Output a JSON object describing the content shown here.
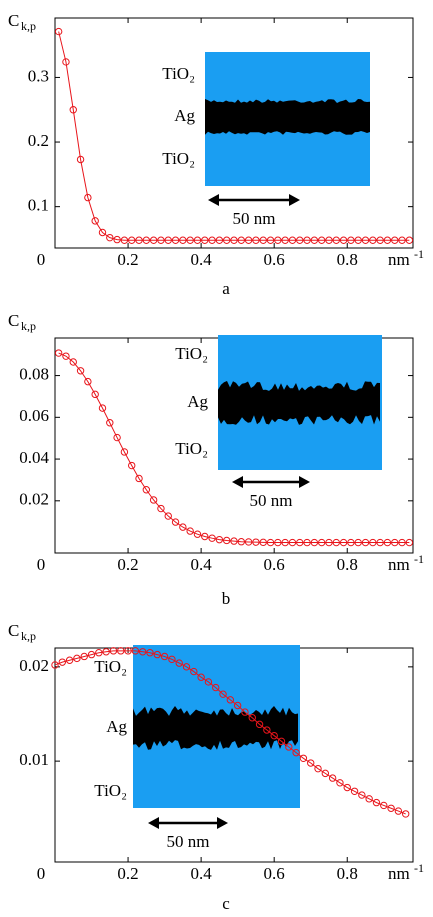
{
  "chart_data": [
    {
      "type": "line",
      "panel_label": "a",
      "y_label": "C",
      "y_label_subscript": "k,p",
      "x_label": "nm",
      "x_label_superscript": "-1",
      "x": [
        0.01,
        0.03,
        0.05,
        0.07,
        0.09,
        0.11,
        0.13,
        0.15,
        0.17,
        0.19,
        0.21,
        0.23,
        0.25,
        0.27,
        0.29,
        0.31,
        0.33,
        0.35,
        0.37,
        0.39,
        0.41,
        0.43,
        0.45,
        0.47,
        0.49,
        0.51,
        0.53,
        0.55,
        0.57,
        0.59,
        0.61,
        0.63,
        0.65,
        0.67,
        0.69,
        0.71,
        0.73,
        0.75,
        0.77,
        0.79,
        0.81,
        0.83,
        0.85,
        0.87,
        0.89,
        0.91,
        0.93,
        0.95,
        0.97
      ],
      "values": [
        0.371,
        0.324,
        0.25,
        0.173,
        0.114,
        0.078,
        0.06,
        0.052,
        0.049,
        0.048,
        0.048,
        0.048,
        0.048,
        0.048,
        0.048,
        0.048,
        0.048,
        0.048,
        0.048,
        0.048,
        0.048,
        0.048,
        0.048,
        0.048,
        0.048,
        0.048,
        0.048,
        0.048,
        0.048,
        0.048,
        0.048,
        0.048,
        0.048,
        0.048,
        0.048,
        0.048,
        0.048,
        0.048,
        0.048,
        0.048,
        0.048,
        0.048,
        0.048,
        0.048,
        0.048,
        0.048,
        0.048,
        0.048,
        0.048
      ],
      "color": "#e8151b",
      "marker": "circle",
      "xlim": [
        0,
        0.98
      ],
      "ylim": [
        0.036,
        0.392
      ],
      "xticks": [
        0,
        0.2,
        0.4,
        0.6,
        0.8
      ],
      "yticks": [
        0.1,
        0.2,
        0.3
      ],
      "inset": {
        "labels": [
          "TiO₂",
          "Ag",
          "TiO₂"
        ],
        "scale_bar": "50 nm",
        "color": "#1a9ef2"
      }
    },
    {
      "type": "line",
      "panel_label": "b",
      "y_label": "C",
      "y_label_subscript": "k,p",
      "x_label": "nm",
      "x_label_superscript": "-1",
      "x": [
        0.01,
        0.03,
        0.05,
        0.07,
        0.09,
        0.11,
        0.13,
        0.15,
        0.17,
        0.19,
        0.21,
        0.23,
        0.25,
        0.27,
        0.29,
        0.31,
        0.33,
        0.35,
        0.37,
        0.39,
        0.41,
        0.43,
        0.45,
        0.47,
        0.49,
        0.51,
        0.53,
        0.55,
        0.57,
        0.59,
        0.61,
        0.63,
        0.65,
        0.67,
        0.69,
        0.71,
        0.73,
        0.75,
        0.77,
        0.79,
        0.81,
        0.83,
        0.85,
        0.87,
        0.89,
        0.91,
        0.93,
        0.95,
        0.97
      ],
      "values": [
        0.0908,
        0.0893,
        0.0865,
        0.0823,
        0.0771,
        0.071,
        0.0644,
        0.0574,
        0.0503,
        0.0434,
        0.0369,
        0.0307,
        0.0253,
        0.0204,
        0.0163,
        0.0127,
        0.0098,
        0.0074,
        0.0055,
        0.004,
        0.0029,
        0.0021,
        0.0014,
        0.001,
        0.0007,
        0.0004,
        0.0003,
        0.0002,
        0.0001,
        0,
        0,
        0,
        0,
        0,
        0,
        0,
        0,
        0,
        0,
        0,
        0,
        0,
        0,
        0,
        0,
        0,
        0,
        0,
        0
      ],
      "color": "#e8151b",
      "marker": "circle",
      "xlim": [
        0,
        0.98
      ],
      "ylim": [
        -0.005,
        0.098
      ],
      "xticks": [
        0,
        0.2,
        0.4,
        0.6,
        0.8
      ],
      "yticks": [
        0.02,
        0.04,
        0.06,
        0.08
      ],
      "inset": {
        "labels": [
          "TiO₂",
          "Ag",
          "TiO₂"
        ],
        "scale_bar": "50 nm",
        "color": "#1a9ef2"
      }
    },
    {
      "type": "line",
      "panel_label": "c",
      "y_label": "C",
      "y_label_subscript": "k,p",
      "x_label": "nm",
      "x_label_superscript": "-1",
      "x": [
        0,
        0.02,
        0.04,
        0.06,
        0.08,
        0.1,
        0.12,
        0.14,
        0.16,
        0.18,
        0.2,
        0.22,
        0.24,
        0.26,
        0.28,
        0.3,
        0.32,
        0.34,
        0.36,
        0.38,
        0.4,
        0.42,
        0.44,
        0.46,
        0.48,
        0.5,
        0.52,
        0.54,
        0.56,
        0.58,
        0.6,
        0.62,
        0.64,
        0.66,
        0.68,
        0.7,
        0.72,
        0.74,
        0.76,
        0.78,
        0.8,
        0.82,
        0.84,
        0.86,
        0.88,
        0.9,
        0.92,
        0.94,
        0.96
      ],
      "values": [
        0.0202,
        0.0205,
        0.0207,
        0.0209,
        0.0211,
        0.0213,
        0.0215,
        0.0216,
        0.0217,
        0.0217,
        0.0217,
        0.0217,
        0.0216,
        0.0215,
        0.0213,
        0.0211,
        0.0208,
        0.0204,
        0.02,
        0.0195,
        0.0189,
        0.0184,
        0.0178,
        0.0171,
        0.0165,
        0.0159,
        0.0152,
        0.0146,
        0.0139,
        0.0133,
        0.0127,
        0.0121,
        0.0115,
        0.0109,
        0.0103,
        0.0098,
        0.0092,
        0.0087,
        0.0082,
        0.0077,
        0.0072,
        0.0068,
        0.0064,
        0.006,
        0.0056,
        0.0053,
        0.005,
        0.0047,
        0.0044
      ],
      "color": "#e8151b",
      "marker": "circle",
      "xlim": [
        0,
        0.98
      ],
      "ylim": [
        -0.0007,
        0.022
      ],
      "xticks": [
        0,
        0.2,
        0.4,
        0.6,
        0.8
      ],
      "yticks": [
        0.01,
        0.02
      ],
      "inset": {
        "labels": [
          "TiO₂",
          "Ag",
          "TiO₂"
        ],
        "scale_bar": "50 nm",
        "color": "#1a9ef2"
      }
    }
  ]
}
